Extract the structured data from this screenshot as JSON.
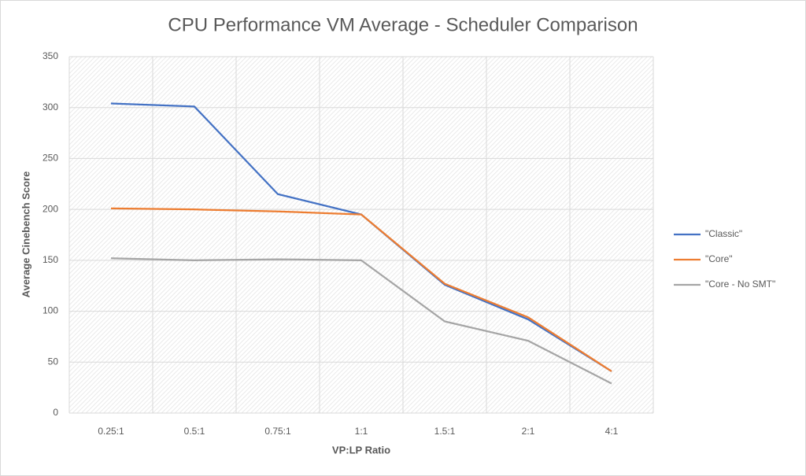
{
  "chart_data": {
    "type": "line",
    "title": "CPU Performance VM Average - Scheduler Comparison",
    "x_label": "VP:LP Ratio",
    "y_label": "Average Cinebench Score",
    "categories": [
      "0.25:1",
      "0.5:1",
      "0.75:1",
      "1:1",
      "1.5:1",
      "2:1",
      "4:1"
    ],
    "series": [
      {
        "name": "\"Classic\"",
        "color": "#4472c4",
        "values": [
          304,
          301,
          215,
          195,
          126,
          92,
          41
        ]
      },
      {
        "name": "\"Core\"",
        "color": "#ed7d31",
        "values": [
          201,
          200,
          198,
          195,
          127,
          94,
          41
        ]
      },
      {
        "name": "\"Core - No SMT\"",
        "color": "#a5a5a5",
        "values": [
          152,
          150,
          151,
          150,
          90,
          71,
          29
        ]
      }
    ],
    "ylim": [
      0,
      350
    ],
    "yticks": [
      0,
      50,
      100,
      150,
      200,
      250,
      300,
      350
    ],
    "grid": true,
    "legend": "right"
  }
}
